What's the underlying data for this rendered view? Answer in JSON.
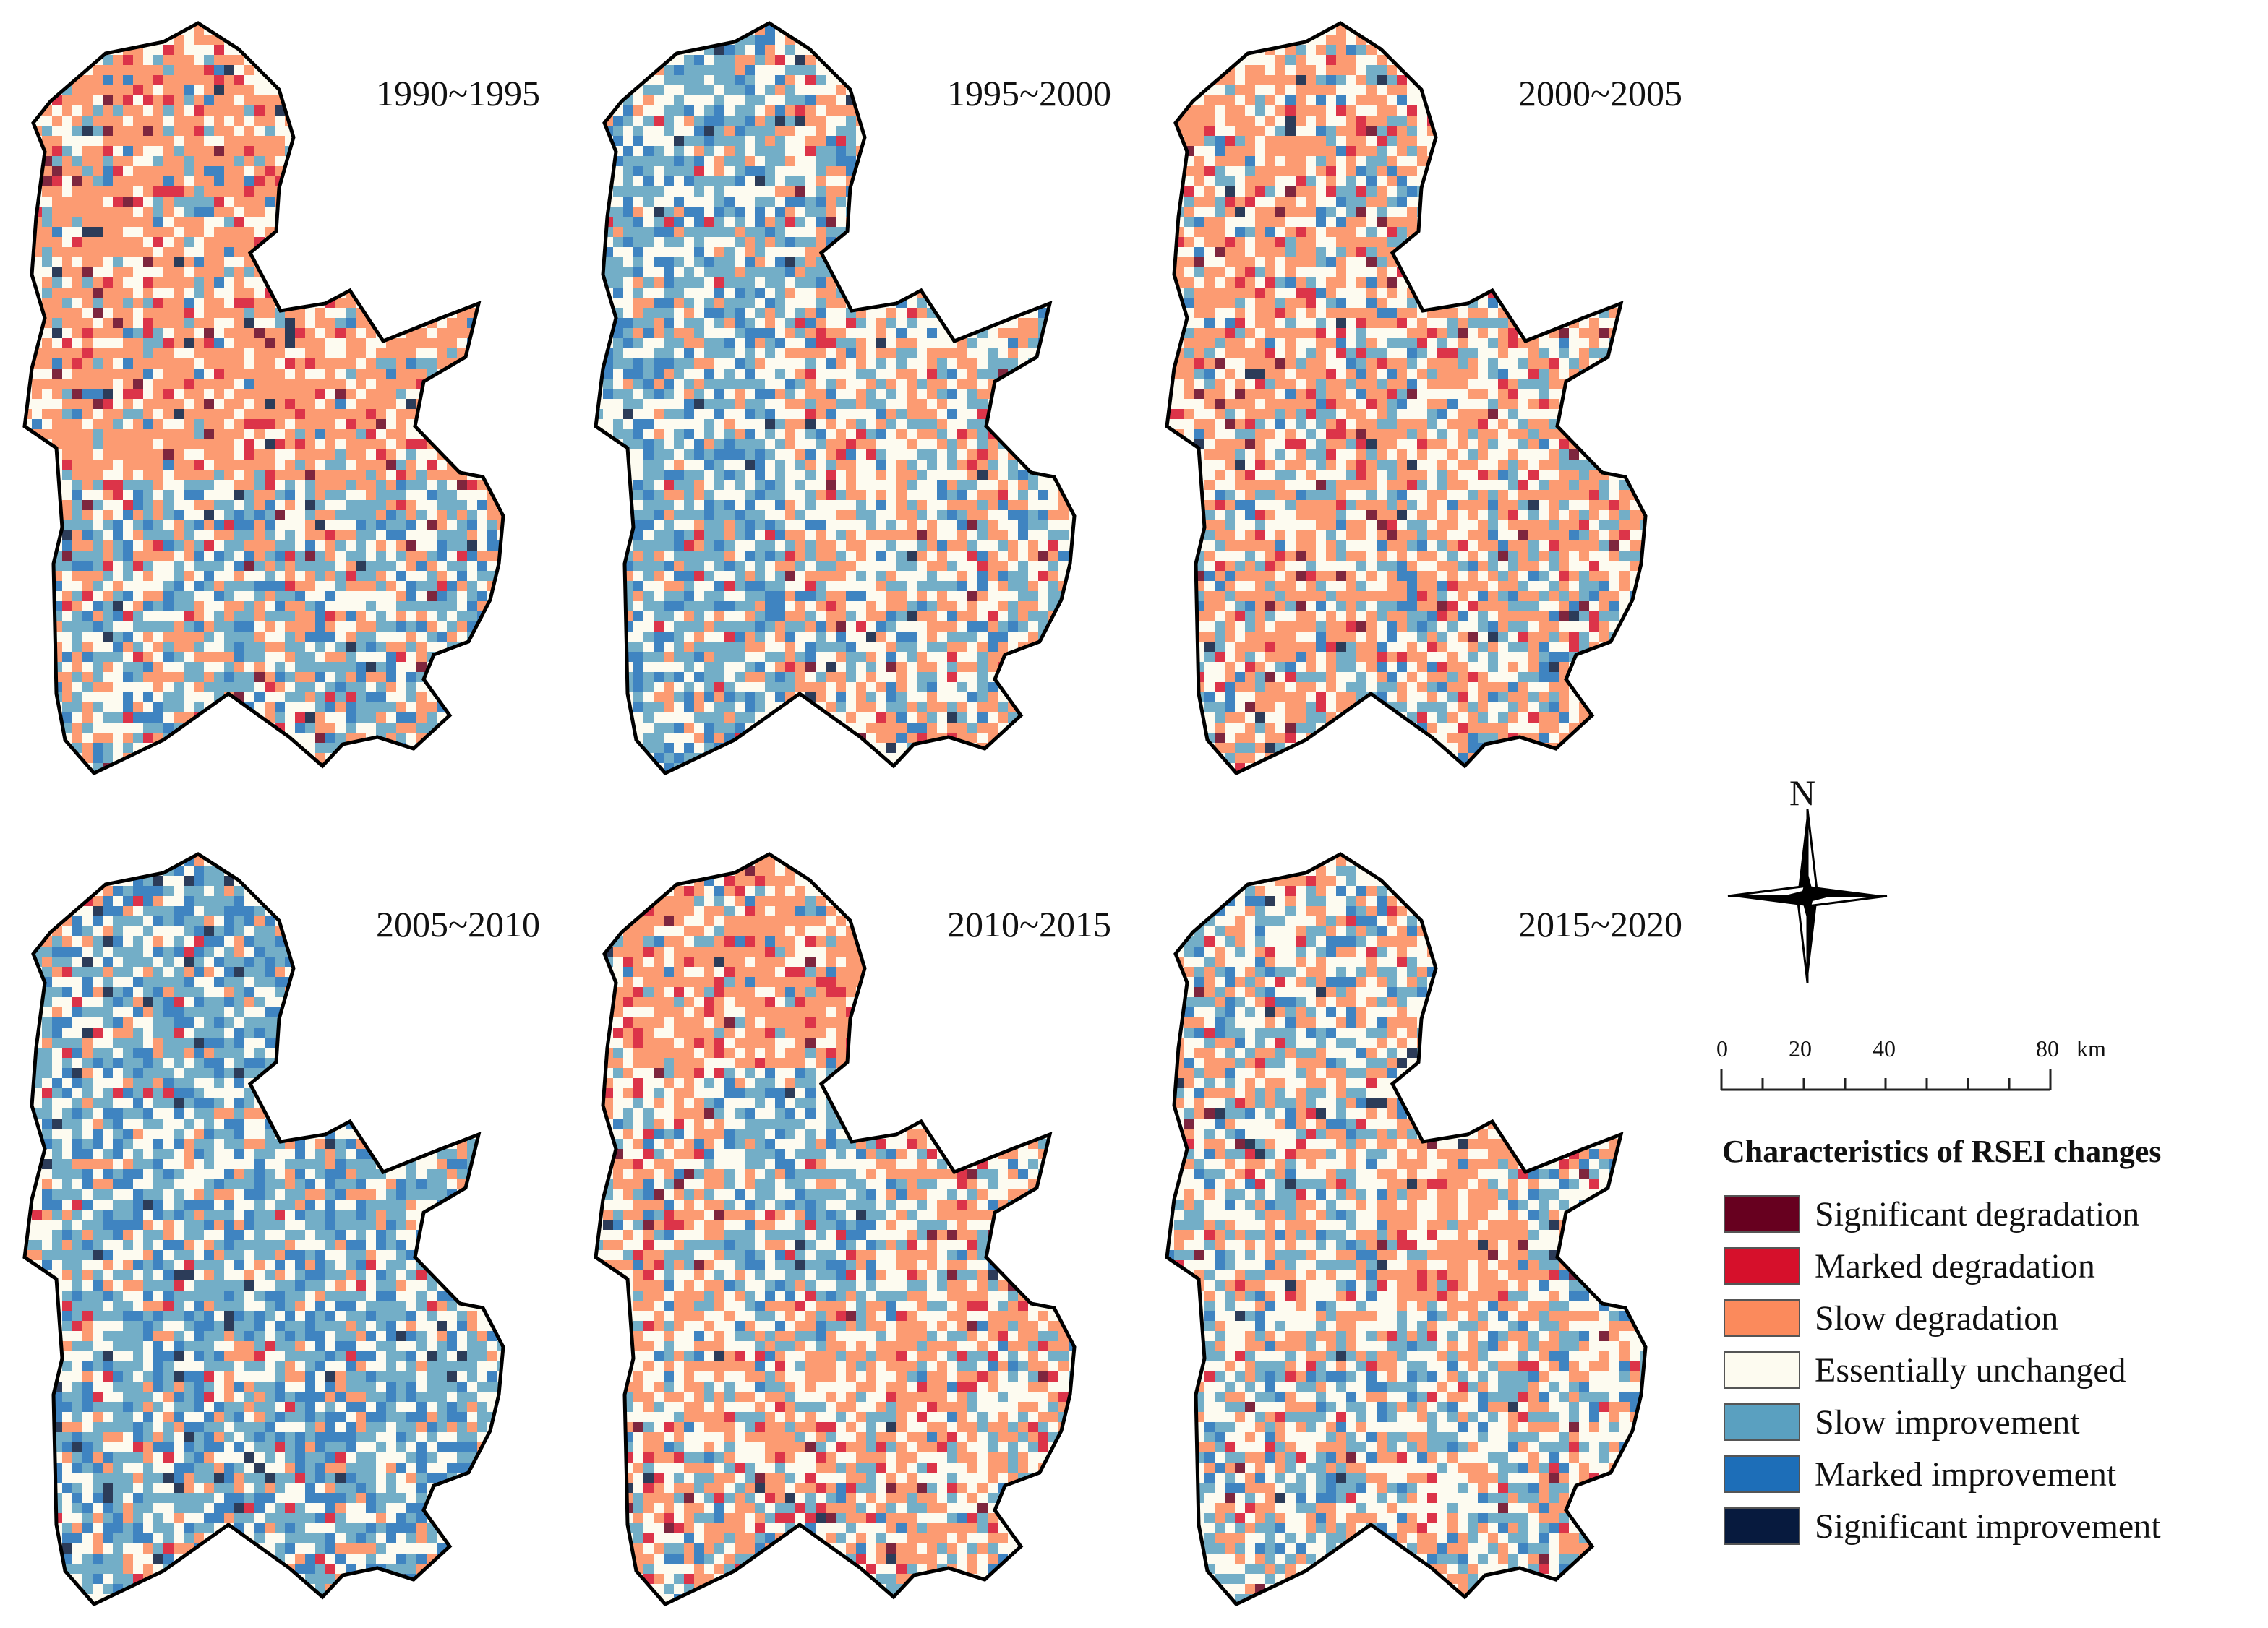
{
  "panels": [
    {
      "period": "1990~1995",
      "dominant": "degradation-north"
    },
    {
      "period": "1995~2000",
      "dominant": "improvement-west"
    },
    {
      "period": "2000~2005",
      "dominant": "mixed-degradation"
    },
    {
      "period": "2005~2010",
      "dominant": "improvement"
    },
    {
      "period": "2010~2015",
      "dominant": "mixed-degradation-north"
    },
    {
      "period": "2015~2020",
      "dominant": "mixed"
    }
  ],
  "north_arrow": {
    "label": "N",
    "icon": "compass-rose-icon"
  },
  "scale_bar": {
    "labels": [
      "0",
      "20",
      "40",
      "80"
    ],
    "unit": "km"
  },
  "legend": {
    "title": "Characteristics of RSEI changes",
    "items": [
      {
        "label": "Significant degradation",
        "color": "#67001f"
      },
      {
        "label": "Marked degradation",
        "color": "#d6102b"
      },
      {
        "label": "Slow degradation",
        "color": "#fb8a5c"
      },
      {
        "label": "Essentially unchanged",
        "color": "#fdfbf0"
      },
      {
        "label": "Slow improvement",
        "color": "#5aa0c0"
      },
      {
        "label": "Marked improvement",
        "color": "#1d6eb8"
      },
      {
        "label": "Significant improvement",
        "color": "#071a3e"
      }
    ]
  }
}
